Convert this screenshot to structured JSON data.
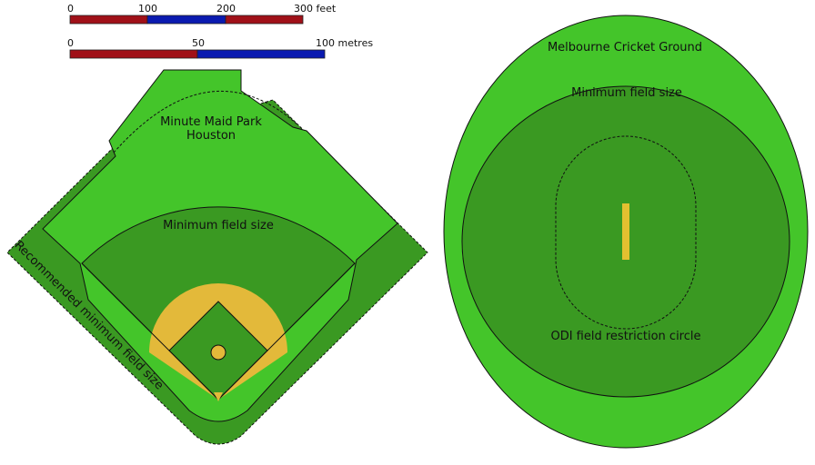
{
  "scale_bars": {
    "feet": {
      "labels": [
        "0",
        "100",
        "200",
        "300 feet"
      ]
    },
    "metres": {
      "labels": [
        "0",
        "50",
        "100 metres"
      ]
    }
  },
  "baseball": {
    "name": "Minute Maid Park",
    "city": "Houston",
    "minimum": "Minimum field size",
    "recommended": "Recommended minimum field size"
  },
  "cricket": {
    "name": "Melbourne Cricket Ground",
    "minimum": "Minimum field size",
    "odi": "ODI field restriction circle"
  }
}
